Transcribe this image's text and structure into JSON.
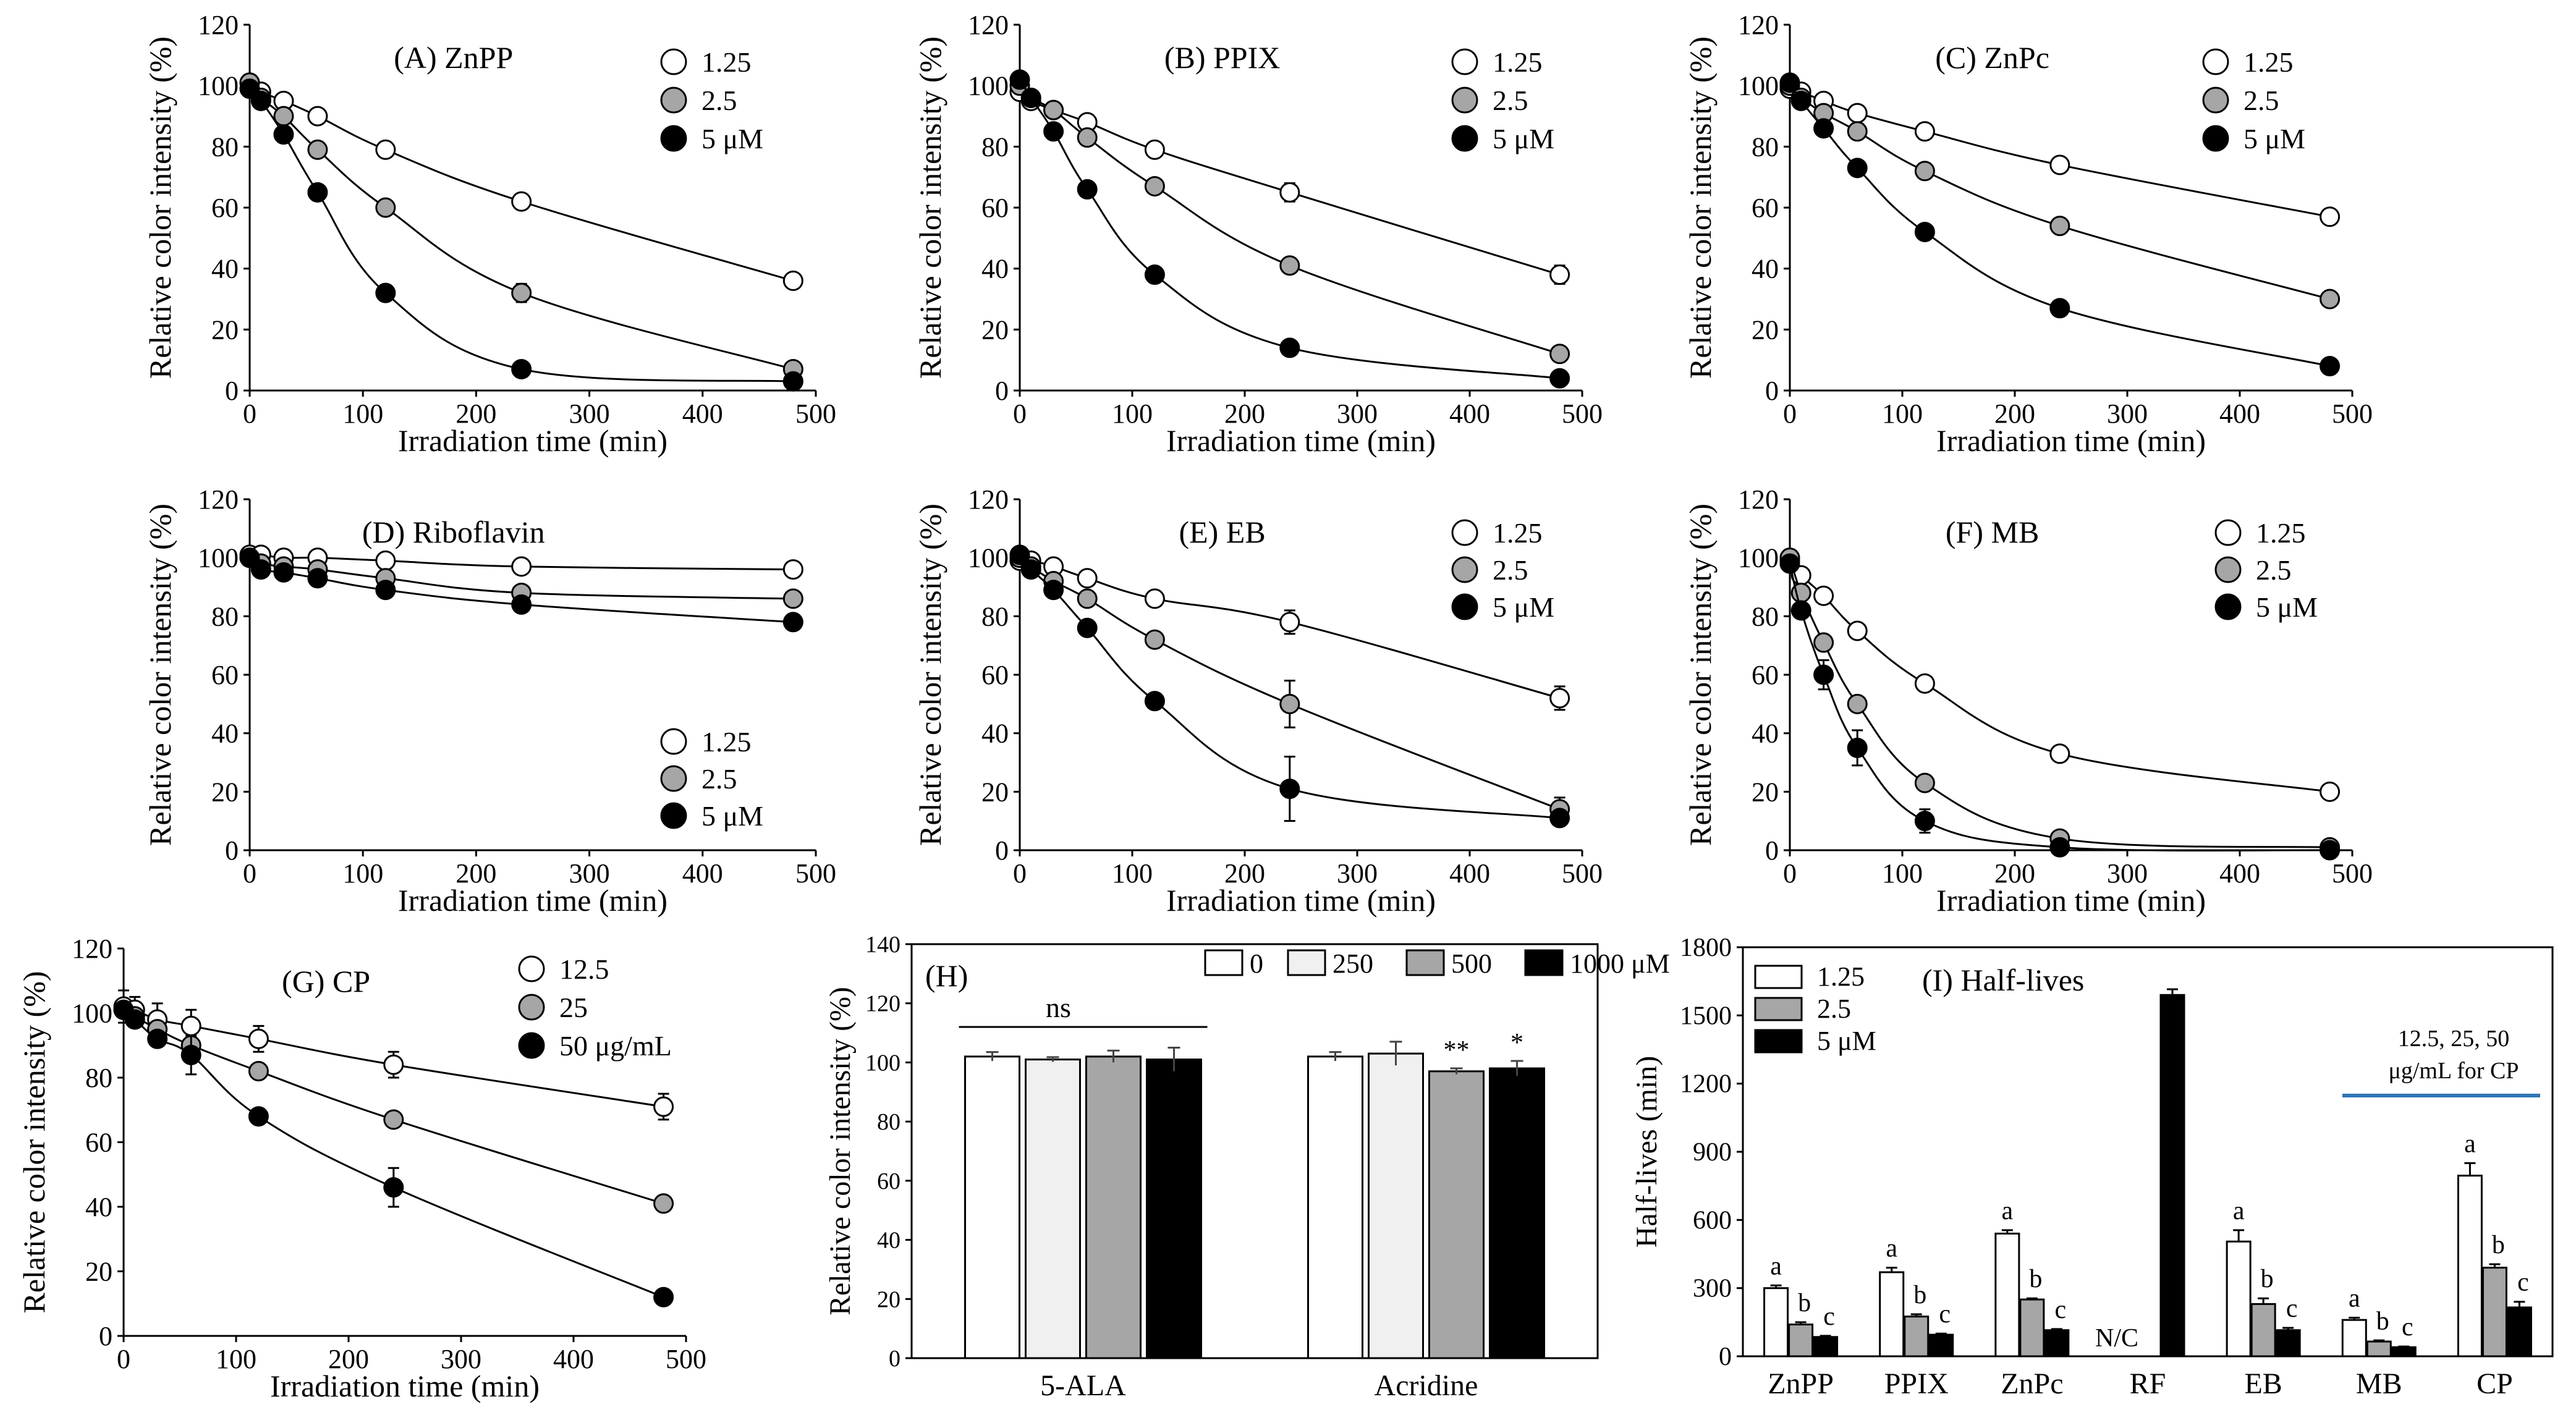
{
  "chart_data": [
    {
      "id": "A",
      "type": "line",
      "title": "(A) ZnPP",
      "xlabel": "Irradiation time (min)",
      "ylabel": "Relative color intensity (%)",
      "xlim": [
        0,
        500
      ],
      "ylim": [
        0,
        120
      ],
      "xticks": [
        "0",
        "100",
        "200",
        "300",
        "400",
        "500"
      ],
      "yticks": [
        "0",
        "20",
        "40",
        "60",
        "80",
        "100",
        "120"
      ],
      "legend": {
        "position": "top-right",
        "entries": [
          "1.25",
          "2.5",
          "5 μM"
        ]
      },
      "x": [
        0,
        10,
        30,
        60,
        120,
        240,
        480
      ],
      "series": [
        {
          "name": "1.25",
          "fill": "#ffffff",
          "values": [
            101,
            98,
            95,
            90,
            79,
            62,
            36
          ],
          "err": [
            0,
            0,
            0,
            0,
            0,
            0,
            0
          ]
        },
        {
          "name": "2.5",
          "fill": "#a6a6a6",
          "values": [
            101,
            96,
            90,
            79,
            60,
            32,
            7
          ],
          "err": [
            0,
            0,
            0,
            0,
            2,
            3,
            0
          ]
        },
        {
          "name": "5 μM",
          "fill": "#000000",
          "values": [
            99,
            95,
            84,
            65,
            32,
            7,
            3
          ],
          "err": [
            0,
            0,
            0,
            0,
            0,
            0,
            0
          ]
        }
      ]
    },
    {
      "id": "B",
      "type": "line",
      "title": "(B) PPIX",
      "xlabel": "Irradiation time (min)",
      "ylabel": "Relative color intensity (%)",
      "xlim": [
        0,
        500
      ],
      "ylim": [
        0,
        120
      ],
      "xticks": [
        "0",
        "100",
        "200",
        "300",
        "400",
        "500"
      ],
      "yticks": [
        "0",
        "20",
        "40",
        "60",
        "80",
        "100",
        "120"
      ],
      "legend": {
        "position": "top-right",
        "entries": [
          "1.25",
          "2.5",
          "5 μM"
        ]
      },
      "x": [
        0,
        10,
        30,
        60,
        120,
        240,
        480
      ],
      "series": [
        {
          "name": "1.25",
          "fill": "#ffffff",
          "values": [
            98,
            95,
            92,
            88,
            79,
            65,
            38
          ],
          "err": [
            0,
            0,
            0,
            0,
            0,
            3,
            3
          ]
        },
        {
          "name": "2.5",
          "fill": "#a6a6a6",
          "values": [
            100,
            96,
            92,
            83,
            67,
            41,
            12
          ],
          "err": [
            0,
            0,
            0,
            0,
            0,
            0,
            0
          ]
        },
        {
          "name": "5 μM",
          "fill": "#000000",
          "values": [
            102,
            96,
            85,
            66,
            38,
            14,
            4
          ],
          "err": [
            0,
            0,
            0,
            0,
            0,
            0,
            0
          ]
        }
      ]
    },
    {
      "id": "C",
      "type": "line",
      "title": "(C) ZnPc",
      "xlabel": "Irradiation time (min)",
      "ylabel": "Relative color intensity (%)",
      "xlim": [
        0,
        500
      ],
      "ylim": [
        0,
        120
      ],
      "xticks": [
        "0",
        "100",
        "200",
        "300",
        "400",
        "500"
      ],
      "yticks": [
        "0",
        "20",
        "40",
        "60",
        "80",
        "100",
        "120"
      ],
      "legend": {
        "position": "top-right",
        "entries": [
          "1.25",
          "2.5",
          "5 μM"
        ]
      },
      "x": [
        0,
        10,
        30,
        60,
        120,
        240,
        480
      ],
      "series": [
        {
          "name": "1.25",
          "fill": "#ffffff",
          "values": [
            99,
            98,
            95,
            91,
            85,
            74,
            57
          ],
          "err": [
            0,
            0,
            0,
            0,
            0,
            0,
            0
          ]
        },
        {
          "name": "2.5",
          "fill": "#a6a6a6",
          "values": [
            100,
            96,
            91,
            85,
            72,
            54,
            30
          ],
          "err": [
            0,
            0,
            0,
            0,
            0,
            0,
            0
          ]
        },
        {
          "name": "5 μM",
          "fill": "#000000",
          "values": [
            101,
            95,
            86,
            73,
            52,
            27,
            8
          ],
          "err": [
            0,
            0,
            0,
            0,
            0,
            0,
            0
          ]
        }
      ]
    },
    {
      "id": "D",
      "type": "line",
      "title": "(D) Riboflavin",
      "xlabel": "Irradiation time (min)",
      "ylabel": "Relative color intensity (%)",
      "xlim": [
        0,
        500
      ],
      "ylim": [
        0,
        120
      ],
      "xticks": [
        "0",
        "100",
        "200",
        "300",
        "400",
        "500"
      ],
      "yticks": [
        "0",
        "20",
        "40",
        "60",
        "80",
        "100",
        "120"
      ],
      "legend": {
        "position": "bottom-right",
        "entries": [
          "1.25",
          "2.5",
          "5 μM"
        ]
      },
      "x": [
        0,
        10,
        30,
        60,
        120,
        240,
        480
      ],
      "series": [
        {
          "name": "1.25",
          "fill": "#ffffff",
          "values": [
            101,
            101,
            100,
            100,
            99,
            97,
            96
          ],
          "err": [
            0,
            0,
            0,
            0,
            0,
            0,
            0
          ]
        },
        {
          "name": "2.5",
          "fill": "#a6a6a6",
          "values": [
            100,
            98,
            97,
            96,
            93,
            88,
            86
          ],
          "err": [
            0,
            0,
            0,
            0,
            0,
            0,
            0
          ]
        },
        {
          "name": "5 μM",
          "fill": "#000000",
          "values": [
            100,
            96,
            95,
            93,
            89,
            84,
            78
          ],
          "err": [
            0,
            0,
            0,
            0,
            0,
            0,
            0
          ]
        }
      ]
    },
    {
      "id": "E",
      "type": "line",
      "title": "(E) EB",
      "xlabel": "Irradiation time (min)",
      "ylabel": "Relative color intensity (%)",
      "xlim": [
        0,
        500
      ],
      "ylim": [
        0,
        120
      ],
      "xticks": [
        "0",
        "100",
        "200",
        "300",
        "400",
        "500"
      ],
      "yticks": [
        "0",
        "20",
        "40",
        "60",
        "80",
        "100",
        "120"
      ],
      "legend": {
        "position": "top-right",
        "entries": [
          "1.25",
          "2.5",
          "5 μM"
        ]
      },
      "x": [
        0,
        10,
        30,
        60,
        120,
        240,
        480
      ],
      "series": [
        {
          "name": "1.25",
          "fill": "#ffffff",
          "values": [
            99,
            99,
            97,
            93,
            86,
            78,
            52
          ],
          "err": [
            0,
            0,
            0,
            0,
            0,
            4,
            4
          ]
        },
        {
          "name": "2.5",
          "fill": "#a6a6a6",
          "values": [
            100,
            97,
            92,
            86,
            72,
            50,
            14
          ],
          "err": [
            0,
            0,
            0,
            0,
            0,
            8,
            4
          ]
        },
        {
          "name": "5 μM",
          "fill": "#000000",
          "values": [
            101,
            96,
            89,
            76,
            51,
            21,
            11
          ],
          "err": [
            0,
            0,
            0,
            0,
            0,
            11,
            0
          ]
        }
      ]
    },
    {
      "id": "F",
      "type": "line",
      "title": "(F) MB",
      "xlabel": "Irradiation time (min)",
      "ylabel": "Relative color intensity (%)",
      "xlim": [
        0,
        500
      ],
      "ylim": [
        0,
        120
      ],
      "xticks": [
        "0",
        "100",
        "200",
        "300",
        "400",
        "500"
      ],
      "yticks": [
        "0",
        "20",
        "40",
        "60",
        "80",
        "100",
        "120"
      ],
      "legend": {
        "position": "top-right",
        "entries": [
          "1.25",
          "2.5",
          "5 μM"
        ]
      },
      "x": [
        0,
        10,
        30,
        60,
        120,
        240,
        480
      ],
      "series": [
        {
          "name": "1.25",
          "fill": "#ffffff",
          "values": [
            99,
            94,
            87,
            75,
            57,
            33,
            20
          ],
          "err": [
            0,
            0,
            0,
            0,
            0,
            0,
            0
          ]
        },
        {
          "name": "2.5",
          "fill": "#a6a6a6",
          "values": [
            100,
            88,
            71,
            50,
            23,
            4,
            1
          ],
          "err": [
            0,
            0,
            0,
            0,
            0,
            0,
            0
          ]
        },
        {
          "name": "5 μM",
          "fill": "#000000",
          "values": [
            98,
            82,
            60,
            35,
            10,
            1,
            0
          ],
          "err": [
            0,
            0,
            5,
            6,
            4,
            0,
            0
          ]
        }
      ]
    },
    {
      "id": "G",
      "type": "line",
      "title": "(G) CP",
      "xlabel": "Irradiation time (min)",
      "ylabel": "Relative color intensity (%)",
      "xlim": [
        0,
        500
      ],
      "ylim": [
        0,
        120
      ],
      "xticks": [
        "0",
        "100",
        "200",
        "300",
        "400",
        "500"
      ],
      "yticks": [
        "0",
        "20",
        "40",
        "60",
        "80",
        "100",
        "120"
      ],
      "legend": {
        "position": "top-right",
        "entries": [
          "12.5",
          "25",
          "50 μg/mL"
        ]
      },
      "x": [
        0,
        10,
        30,
        60,
        120,
        240,
        480
      ],
      "series": [
        {
          "name": "12.5",
          "fill": "#ffffff",
          "values": [
            102,
            101,
            98,
            96,
            92,
            84,
            71
          ],
          "err": [
            5,
            4,
            5,
            5,
            4,
            4,
            4
          ]
        },
        {
          "name": "25",
          "fill": "#a6a6a6",
          "values": [
            101,
            99,
            95,
            90,
            82,
            67,
            41
          ],
          "err": [
            0,
            0,
            0,
            0,
            0,
            0,
            0
          ]
        },
        {
          "name": "50 μg/mL",
          "fill": "#000000",
          "values": [
            101,
            98,
            92,
            87,
            68,
            46,
            12
          ],
          "err": [
            0,
            0,
            0,
            6,
            0,
            6,
            0
          ]
        }
      ]
    },
    {
      "id": "H",
      "type": "bar",
      "title": "(H)",
      "xlabel": "",
      "ylabel": "Relative color intensity (%)",
      "ylim": [
        0,
        140
      ],
      "yticks": [
        "0",
        "20",
        "40",
        "60",
        "80",
        "100",
        "120",
        "140"
      ],
      "categories": [
        "5-ALA",
        "Acridine"
      ],
      "legend": {
        "position": "top",
        "entries": [
          "0",
          "250",
          "500",
          "1000 μM"
        ]
      },
      "series": [
        {
          "name": "0",
          "fill": "#ffffff",
          "values": [
            102,
            102
          ],
          "err": [
            1.5,
            1.5
          ]
        },
        {
          "name": "250",
          "fill": "#f0f0f0",
          "values": [
            101,
            103
          ],
          "err": [
            0.8,
            4
          ]
        },
        {
          "name": "500",
          "fill": "#a6a6a6",
          "values": [
            102,
            97
          ],
          "err": [
            2,
            1
          ]
        },
        {
          "name": "1000 μM",
          "fill": "#000000",
          "values": [
            101,
            98
          ],
          "err": [
            4,
            2.5
          ]
        }
      ],
      "annotations": {
        "ns": "ns",
        "acridine_500": "**",
        "acridine_1000": "*"
      }
    },
    {
      "id": "I",
      "type": "bar",
      "title": "(I) Half-lives",
      "xlabel": "",
      "ylabel": "Half-lives (min)",
      "ylim": [
        0,
        1800
      ],
      "yticks": [
        "0",
        "300",
        "600",
        "900",
        "1200",
        "1500",
        "1800"
      ],
      "categories": [
        "ZnPP",
        "PPIX",
        "ZnPc",
        "RF",
        "EB",
        "MB",
        "CP"
      ],
      "legend": {
        "position": "top-left",
        "entries": [
          "1.25",
          "2.5",
          "5 μM"
        ]
      },
      "series": [
        {
          "name": "1.25",
          "fill": "#ffffff",
          "values": [
            300,
            370,
            540,
            0,
            505,
            160,
            795
          ],
          "err": [
            12,
            20,
            15,
            0,
            50,
            10,
            55
          ]
        },
        {
          "name": "2.5",
          "fill": "#a6a6a6",
          "values": [
            140,
            175,
            250,
            0,
            230,
            65,
            390
          ],
          "err": [
            10,
            10,
            5,
            0,
            25,
            5,
            15
          ]
        },
        {
          "name": "5 μM",
          "fill": "#000000",
          "values": [
            85,
            95,
            115,
            1590,
            115,
            40,
            215
          ],
          "err": [
            5,
            5,
            5,
            25,
            10,
            3,
            25
          ]
        }
      ],
      "letters": [
        "a",
        "b",
        "c"
      ],
      "nc_label": "N/C",
      "cp_note_line1": "12.5, 25, 50",
      "cp_note_line2": "μg/mL  for CP",
      "cp_note_color": "#2e75b6"
    }
  ]
}
